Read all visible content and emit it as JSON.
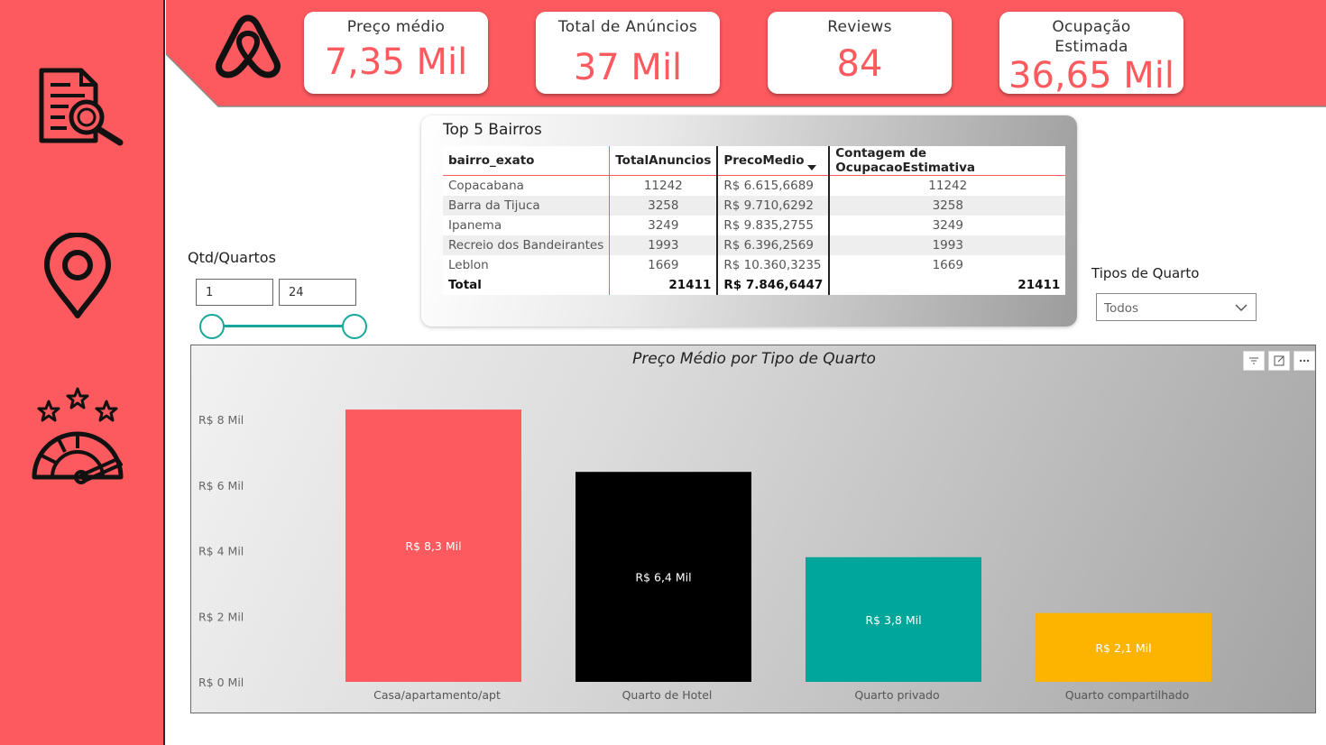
{
  "header": {
    "cards": [
      {
        "label": "Preço médio",
        "value": "7,35 Mil"
      },
      {
        "label": "Total de Anúncios",
        "value": "37 Mil"
      },
      {
        "label": "Reviews",
        "value": "84"
      },
      {
        "label": "Ocupação\nEstimada",
        "value": "36,65 Mil"
      }
    ]
  },
  "sidebar": {
    "items": [
      {
        "icon": "report-search-icon"
      },
      {
        "icon": "map-pin-icon"
      },
      {
        "icon": "rating-gauge-icon"
      }
    ]
  },
  "table": {
    "title": "Top 5 Bairros",
    "columns": [
      "bairro_exato",
      "TotalAnuncios",
      "PrecoMedio",
      "Contagem de OcupacaoEstimativa"
    ],
    "rows": [
      [
        "Copacabana",
        "11242",
        "R$ 6.615,6689",
        "11242"
      ],
      [
        "Barra da Tijuca",
        "3258",
        "R$ 9.710,6292",
        "3258"
      ],
      [
        "Ipanema",
        "3249",
        "R$ 9.835,2755",
        "3249"
      ],
      [
        "Recreio dos Bandeirantes",
        "1993",
        "R$ 6.396,2569",
        "1993"
      ],
      [
        "Leblon",
        "1669",
        "R$ 10.360,3235",
        "1669"
      ]
    ],
    "total": [
      "Total",
      "21411",
      "R$ 7.846,6447",
      "21411"
    ]
  },
  "filters": {
    "qtd_label": "Qtd/Quartos",
    "qtd_min": "1",
    "qtd_max": "24",
    "tipos_label": "Tipos de Quarto",
    "tipos_value": "Todos"
  },
  "chart_data": {
    "type": "bar",
    "title": "Preço Médio por Tipo de Quarto",
    "categories": [
      "Casa/apartamento/apt",
      "Quarto de Hotel",
      "Quarto privado",
      "Quarto compartilhado"
    ],
    "values": [
      8.3,
      6.4,
      3.8,
      2.1
    ],
    "value_labels": [
      "R$ 8,3 Mil",
      "R$ 6,4 Mil",
      "R$ 3,8 Mil",
      "R$ 2,1 Mil"
    ],
    "colors": [
      "#fd5a5f",
      "#000000",
      "#00a699",
      "#fcb400"
    ],
    "ylim": [
      0,
      8
    ],
    "y_ticks": [
      0,
      2,
      4,
      6,
      8
    ],
    "y_tick_labels": [
      "R$ 0 Mil",
      "R$ 2 Mil",
      "R$ 4 Mil",
      "R$ 6 Mil",
      "R$ 8 Mil"
    ],
    "grid": false,
    "xlabel": "",
    "ylabel": ""
  },
  "colors": {
    "brand": "#fd5a5f",
    "teal": "#17a89b"
  }
}
